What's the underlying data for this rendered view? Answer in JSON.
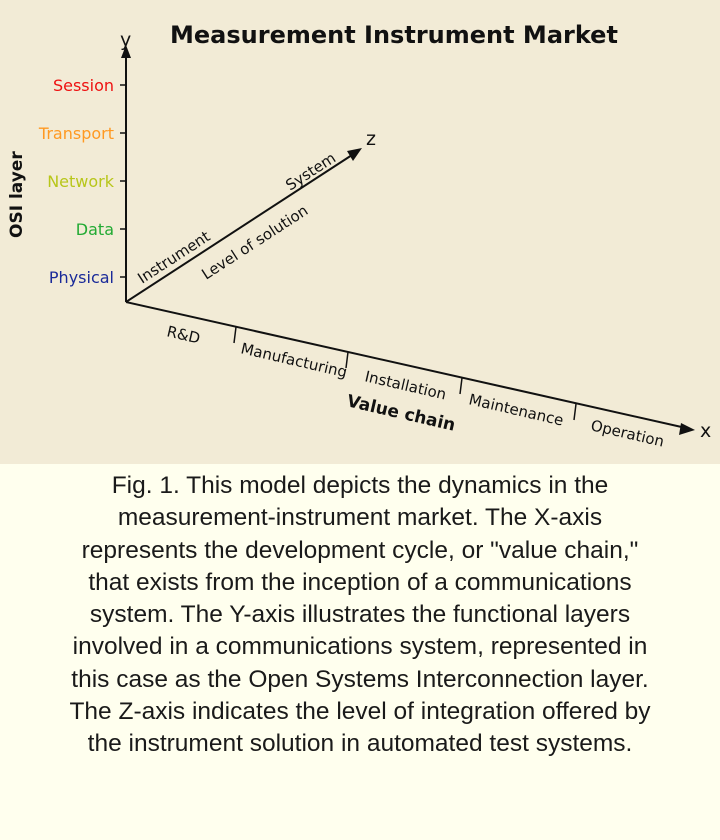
{
  "diagram": {
    "title": "Measurement Instrument Market",
    "axes": {
      "y": {
        "letter": "y",
        "title": "OSI layer"
      },
      "z": {
        "letter": "z",
        "title": "Level of solution"
      },
      "x": {
        "letter": "x",
        "title": "Value chain"
      }
    },
    "osi_layers": [
      {
        "label": "Session",
        "color": "#ee1111"
      },
      {
        "label": "Transport",
        "color": "#ff9922"
      },
      {
        "label": "Network",
        "color": "#b8c61a"
      },
      {
        "label": "Data",
        "color": "#22aa33"
      },
      {
        "label": "Physical",
        "color": "#1a2a99"
      }
    ],
    "solution_levels": [
      "Instrument",
      "System"
    ],
    "value_chain": [
      "R&D",
      "Manufacturing",
      "Installation",
      "Maintenance",
      "Operation"
    ],
    "colors": {
      "background": "#f2ebd6",
      "ink": "#111111",
      "caption_background": "#ffffee"
    }
  },
  "caption": {
    "lines": [
      "Fig. 1. This model depicts the dynamics in the",
      "measurement-instrument market. The X-axis",
      "represents the development cycle, or \"value chain,\"",
      "that exists from the inception of a communications",
      "system. The Y-axis illustrates the functional layers",
      "involved in a communications system, represented in",
      "this case as the Open Systems Interconnection layer.",
      "The Z-axis indicates the level of integration offered by",
      "the instrument solution in automated test systems."
    ]
  }
}
